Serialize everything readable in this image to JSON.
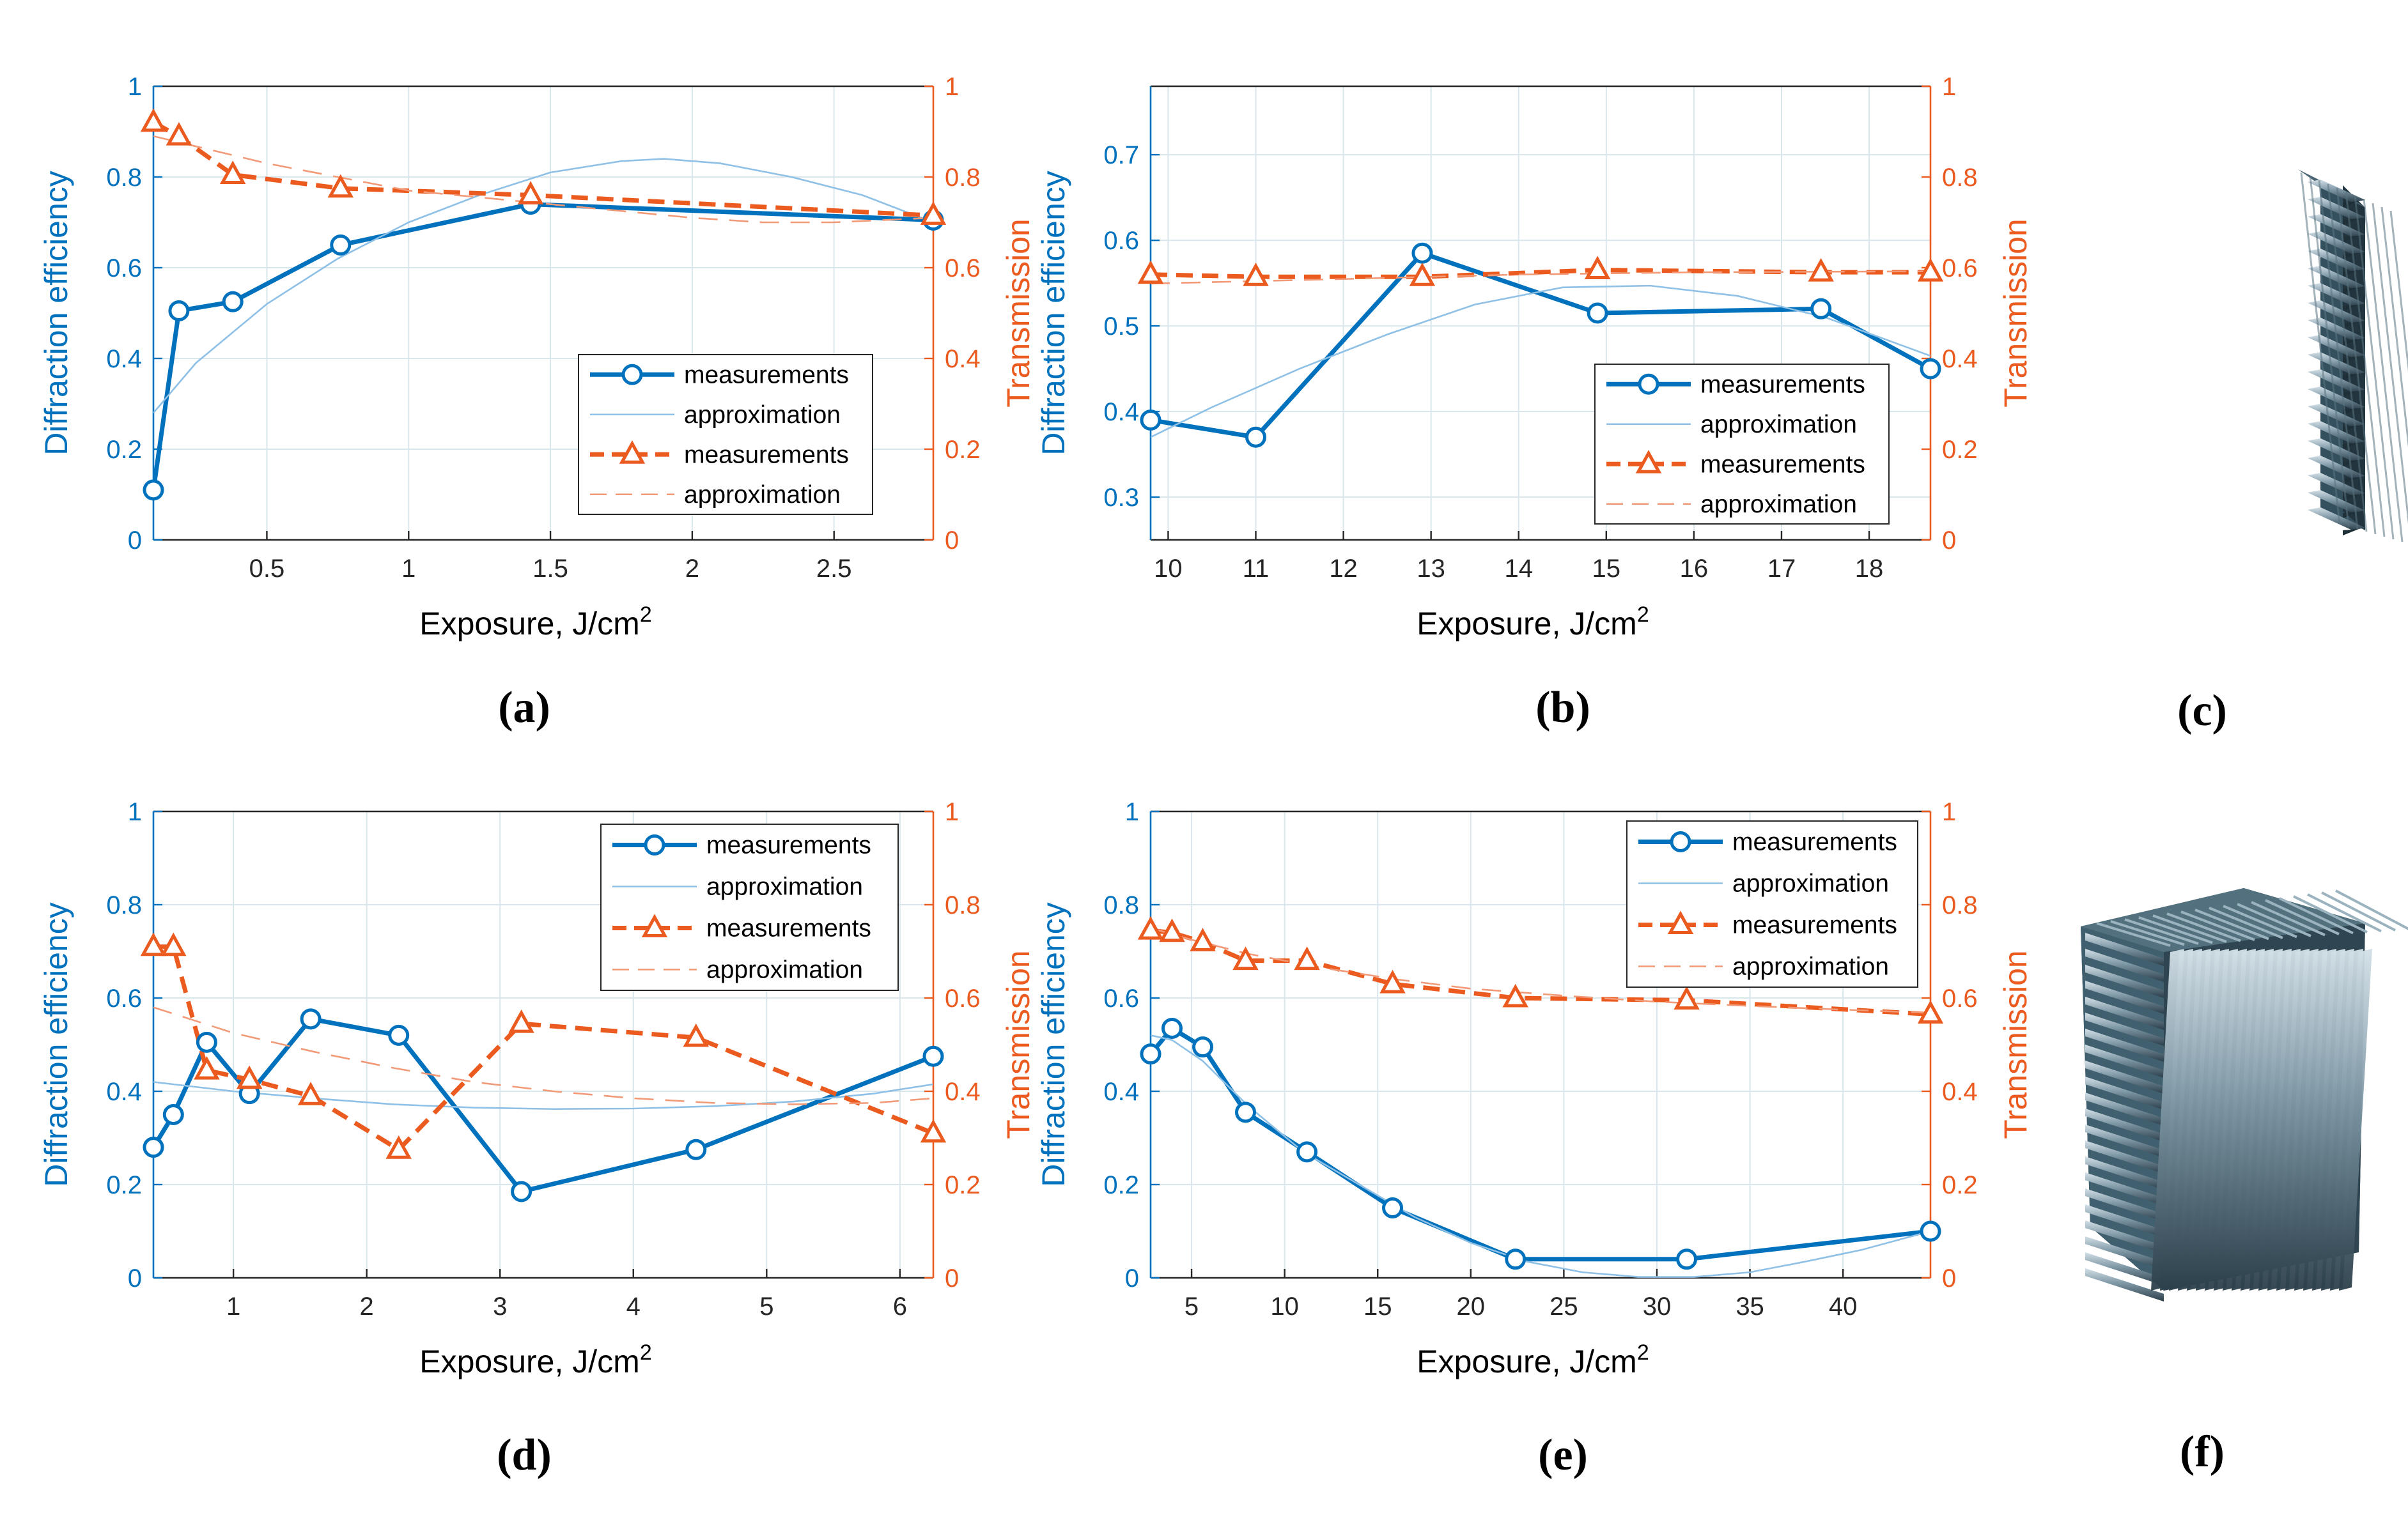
{
  "figure_title": "",
  "colors": {
    "de": "#0072bd",
    "tr": "#eb5a1e",
    "grid": "#d9e6ec",
    "axis": "#262626",
    "cube_dark": "#3a5462",
    "cube_light": "#b7cad5"
  },
  "chart_data": [
    {
      "panel": "(a)",
      "type": "line",
      "xlabel": "Exposure, J/cm",
      "xlabel_sup": "2",
      "ylabel_left": "Diffraction efficiency",
      "ylabel_right": "Transmission",
      "xlim": [
        0.1,
        2.85
      ],
      "xticks": [
        0.5,
        1,
        1.5,
        2,
        2.5
      ],
      "xtick_labels": [
        "0.5",
        "1",
        "1.5",
        "2",
        "2.5"
      ],
      "ylim_left": [
        0,
        1
      ],
      "yticks_left": [
        0,
        0.2,
        0.4,
        0.6,
        0.8,
        1
      ],
      "ytick_labels_left": [
        "0",
        "0.2",
        "0.4",
        "0.6",
        "0.8",
        "1"
      ],
      "ylim_right": [
        0,
        1
      ],
      "yticks_right": [
        0,
        0.2,
        0.4,
        0.6,
        0.8,
        1
      ],
      "ytick_labels_right": [
        "0",
        "0.2",
        "0.4",
        "0.6",
        "0.8",
        "1"
      ],
      "legend": [
        "measurements",
        "approximation",
        "measurements",
        "approximation"
      ],
      "legend_position": "bottom-right",
      "series": [
        {
          "name": "measurements",
          "axis": "left",
          "style": "de-marker",
          "x": [
            0.1,
            0.19,
            0.38,
            0.76,
            1.43,
            2.85
          ],
          "y": [
            0.11,
            0.505,
            0.525,
            0.65,
            0.74,
            0.705
          ]
        },
        {
          "name": "approximation",
          "axis": "left",
          "style": "de-approx",
          "x": [
            0.1,
            0.25,
            0.5,
            0.75,
            1.0,
            1.25,
            1.5,
            1.75,
            1.9,
            2.1,
            2.35,
            2.6,
            2.85
          ],
          "y": [
            0.28,
            0.39,
            0.52,
            0.62,
            0.7,
            0.76,
            0.81,
            0.835,
            0.84,
            0.83,
            0.8,
            0.76,
            0.7
          ]
        },
        {
          "name": "measurements",
          "axis": "right",
          "style": "tr-marker",
          "x": [
            0.1,
            0.19,
            0.38,
            0.76,
            1.43,
            2.85
          ],
          "y": [
            0.92,
            0.89,
            0.805,
            0.775,
            0.76,
            0.715
          ]
        },
        {
          "name": "approximation",
          "axis": "right",
          "style": "tr-approx",
          "x": [
            0.1,
            0.3,
            0.5,
            0.75,
            1.0,
            1.25,
            1.5,
            1.75,
            2.0,
            2.25,
            2.5,
            2.85
          ],
          "y": [
            0.89,
            0.86,
            0.83,
            0.8,
            0.77,
            0.755,
            0.74,
            0.725,
            0.71,
            0.7,
            0.7,
            0.71
          ]
        }
      ]
    },
    {
      "panel": "(b)",
      "type": "line",
      "xlabel": "Exposure, J/cm",
      "xlabel_sup": "2",
      "ylabel_left": "Diffraction efficiency",
      "ylabel_right": "Transmission",
      "xlim": [
        9.8,
        18.7
      ],
      "xticks": [
        10,
        11,
        12,
        13,
        14,
        15,
        16,
        17,
        18
      ],
      "xtick_labels": [
        "10",
        "11",
        "12",
        "13",
        "14",
        "15",
        "16",
        "17",
        "18"
      ],
      "ylim_left": [
        0.25,
        0.78
      ],
      "yticks_left": [
        0.3,
        0.4,
        0.5,
        0.6,
        0.7
      ],
      "ytick_labels_left": [
        "0.3",
        "0.4",
        "0.5",
        "0.6",
        "0.7"
      ],
      "ylim_right": [
        0,
        1
      ],
      "yticks_right": [
        0,
        0.2,
        0.4,
        0.6,
        0.8,
        1
      ],
      "ytick_labels_right": [
        "0",
        "0.2",
        "0.4",
        "0.6",
        "0.8",
        "1"
      ],
      "legend": [
        "measurements",
        "approximation",
        "measurements",
        "approximation"
      ],
      "legend_position": "bottom-right",
      "series": [
        {
          "name": "measurements",
          "axis": "left",
          "style": "de-marker",
          "x": [
            9.8,
            11,
            12.9,
            14.9,
            17.45,
            18.7
          ],
          "y": [
            0.39,
            0.37,
            0.585,
            0.515,
            0.52,
            0.45
          ]
        },
        {
          "name": "approximation",
          "axis": "left",
          "style": "de-approx",
          "x": [
            9.8,
            10.5,
            11.5,
            12.5,
            13.5,
            14.5,
            15.5,
            16.5,
            17.5,
            18.7
          ],
          "y": [
            0.37,
            0.405,
            0.45,
            0.49,
            0.525,
            0.545,
            0.547,
            0.535,
            0.51,
            0.465
          ]
        },
        {
          "name": "measurements",
          "axis": "right",
          "style": "tr-marker",
          "x": [
            9.8,
            11,
            12.9,
            14.9,
            17.45,
            18.7
          ],
          "y": [
            0.585,
            0.58,
            0.58,
            0.595,
            0.59,
            0.59
          ]
        },
        {
          "name": "approximation",
          "axis": "right",
          "style": "tr-approx",
          "x": [
            9.8,
            12,
            14,
            16,
            18.7
          ],
          "y": [
            0.565,
            0.575,
            0.585,
            0.59,
            0.592
          ]
        }
      ]
    },
    {
      "panel": "(d)",
      "type": "line",
      "xlabel": "Exposure, J/cm",
      "xlabel_sup": "2",
      "ylabel_left": "Diffraction efficiency",
      "ylabel_right": "Transmission",
      "xlim": [
        0.4,
        6.25
      ],
      "xticks": [
        1,
        2,
        3,
        4,
        5,
        6
      ],
      "xtick_labels": [
        "1",
        "2",
        "3",
        "4",
        "5",
        "6"
      ],
      "ylim_left": [
        0,
        1
      ],
      "yticks_left": [
        0,
        0.2,
        0.4,
        0.6,
        0.8,
        1
      ],
      "ytick_labels_left": [
        "0",
        "0.2",
        "0.4",
        "0.6",
        "0.8",
        "1"
      ],
      "ylim_right": [
        0,
        1
      ],
      "yticks_right": [
        0,
        0.2,
        0.4,
        0.6,
        0.8,
        1
      ],
      "ytick_labels_right": [
        "0",
        "0.2",
        "0.4",
        "0.6",
        "0.8",
        "1"
      ],
      "legend": [
        "measurements",
        "approximation",
        "measurements",
        "approximation"
      ],
      "legend_position": "top-right",
      "series": [
        {
          "name": "measurements",
          "axis": "left",
          "style": "de-marker",
          "x": [
            0.4,
            0.55,
            0.8,
            1.12,
            1.58,
            2.24,
            3.16,
            4.47,
            6.25
          ],
          "y": [
            0.28,
            0.35,
            0.505,
            0.395,
            0.555,
            0.52,
            0.185,
            0.275,
            0.475
          ]
        },
        {
          "name": "approximation",
          "axis": "left",
          "style": "de-approx",
          "x": [
            0.4,
            1.0,
            1.6,
            2.2,
            2.8,
            3.4,
            4.0,
            4.6,
            5.2,
            5.8,
            6.25
          ],
          "y": [
            0.42,
            0.4,
            0.385,
            0.372,
            0.365,
            0.362,
            0.363,
            0.368,
            0.378,
            0.395,
            0.415
          ]
        },
        {
          "name": "measurements",
          "axis": "right",
          "style": "tr-marker",
          "x": [
            0.4,
            0.55,
            0.8,
            1.12,
            1.58,
            2.24,
            3.16,
            4.47,
            6.25
          ],
          "y": [
            0.71,
            0.71,
            0.445,
            0.425,
            0.39,
            0.275,
            0.545,
            0.515,
            0.31
          ]
        },
        {
          "name": "approximation",
          "axis": "right",
          "style": "tr-approx",
          "x": [
            0.4,
            1.0,
            1.6,
            2.2,
            2.8,
            3.4,
            4.0,
            4.6,
            5.2,
            5.8,
            6.25
          ],
          "y": [
            0.58,
            0.525,
            0.485,
            0.45,
            0.42,
            0.4,
            0.385,
            0.375,
            0.372,
            0.375,
            0.385
          ]
        }
      ]
    },
    {
      "panel": "(e)",
      "type": "line",
      "xlabel": "Exposure, J/cm",
      "xlabel_sup": "2",
      "ylabel_left": "Diffraction efficiency",
      "ylabel_right": "Transmission",
      "xlim": [
        2.8,
        44.7
      ],
      "xticks": [
        5,
        10,
        15,
        20,
        25,
        30,
        35,
        40
      ],
      "xtick_labels": [
        "5",
        "10",
        "15",
        "20",
        "25",
        "30",
        "35",
        "40"
      ],
      "ylim_left": [
        0,
        1
      ],
      "yticks_left": [
        0,
        0.2,
        0.4,
        0.6,
        0.8,
        1
      ],
      "ytick_labels_left": [
        "0",
        "0.2",
        "0.4",
        "0.6",
        "0.8",
        "1"
      ],
      "ylim_right": [
        0,
        1
      ],
      "yticks_right": [
        0,
        0.2,
        0.4,
        0.6,
        0.8,
        1
      ],
      "ytick_labels_right": [
        "0",
        "0.2",
        "0.4",
        "0.6",
        "0.8",
        "1"
      ],
      "legend": [
        "measurements",
        "approximation",
        "measurements",
        "approximation"
      ],
      "legend_position": "top-right",
      "series": [
        {
          "name": "measurements",
          "axis": "left",
          "style": "de-marker",
          "x": [
            2.8,
            3.95,
            5.6,
            7.9,
            11.2,
            15.8,
            22.4,
            31.6,
            44.7
          ],
          "y": [
            0.48,
            0.535,
            0.495,
            0.355,
            0.27,
            0.15,
            0.04,
            0.04,
            0.1
          ]
        },
        {
          "name": "approximation",
          "axis": "left",
          "style": "de-approx",
          "x": [
            2.8,
            3.95,
            5.6,
            8,
            11,
            14,
            17,
            20,
            23,
            26,
            29,
            32,
            35,
            38,
            41,
            44.7
          ],
          "y": [
            0.52,
            0.51,
            0.465,
            0.37,
            0.27,
            0.2,
            0.13,
            0.075,
            0.035,
            0.012,
            0.002,
            0.002,
            0.012,
            0.035,
            0.06,
            0.1
          ]
        },
        {
          "name": "measurements",
          "axis": "right",
          "style": "tr-marker",
          "x": [
            2.8,
            3.95,
            5.6,
            7.9,
            11.2,
            15.8,
            22.4,
            31.6,
            44.7
          ],
          "y": [
            0.745,
            0.74,
            0.72,
            0.68,
            0.68,
            0.63,
            0.6,
            0.595,
            0.565
          ]
        },
        {
          "name": "approximation",
          "axis": "right",
          "style": "tr-approx",
          "x": [
            2.8,
            5,
            8,
            12,
            16,
            20,
            25,
            30,
            35,
            40,
            44.7
          ],
          "y": [
            0.75,
            0.725,
            0.695,
            0.665,
            0.64,
            0.62,
            0.605,
            0.592,
            0.583,
            0.575,
            0.568
          ]
        }
      ]
    }
  ],
  "cubes": [
    {
      "panel": "(c)",
      "grating": "horizontal"
    },
    {
      "panel": "(f)",
      "grating": "slanted"
    }
  ]
}
